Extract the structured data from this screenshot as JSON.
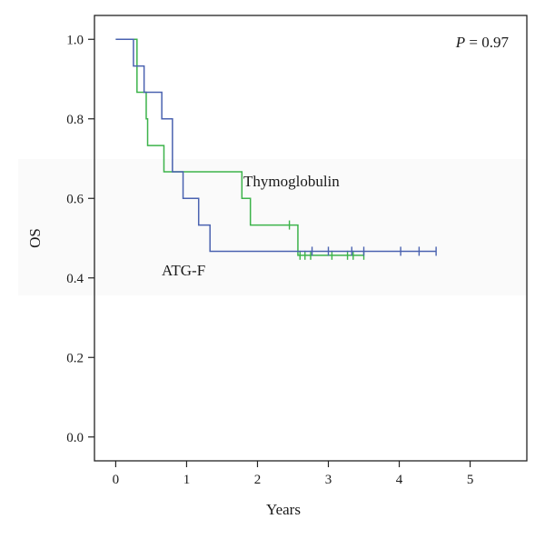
{
  "chart_data": {
    "type": "line",
    "xlabel": "Years",
    "ylabel": "OS",
    "xlim": [
      -0.3,
      5.8
    ],
    "ylim": [
      -0.06,
      1.06
    ],
    "x_ticks": [
      0,
      1,
      2,
      3,
      4,
      5
    ],
    "x_tick_labels": [
      "0",
      "1",
      "2",
      "3",
      "4",
      "5"
    ],
    "y_ticks": [
      0.0,
      0.2,
      0.4,
      0.6,
      0.8,
      1.0
    ],
    "y_tick_labels": [
      "0.0",
      "0.2",
      "0.4",
      "0.6",
      "0.8",
      "1.0"
    ],
    "grid": false,
    "p_value": {
      "label": "P",
      "text": " = 0.97"
    },
    "series": [
      {
        "name": "Thymoglobulin",
        "color": "#3cb34a",
        "steps": [
          [
            0,
            1.0
          ],
          [
            0.3,
            0.867
          ],
          [
            0.43,
            0.8
          ],
          [
            0.45,
            0.733
          ],
          [
            0.68,
            0.667
          ],
          [
            1.78,
            0.6
          ],
          [
            1.9,
            0.533
          ],
          [
            2.55,
            0.533
          ],
          [
            2.57,
            0.457
          ]
        ],
        "end_x": 3.5,
        "censored": [
          {
            "x": 2.45,
            "y": 0.533
          },
          {
            "x": 2.6,
            "y": 0.457
          },
          {
            "x": 2.67,
            "y": 0.457
          },
          {
            "x": 2.75,
            "y": 0.457
          },
          {
            "x": 3.05,
            "y": 0.457
          },
          {
            "x": 3.27,
            "y": 0.457
          },
          {
            "x": 3.35,
            "y": 0.457
          },
          {
            "x": 3.5,
            "y": 0.457
          }
        ]
      },
      {
        "name": "ATG-F",
        "color": "#4a62b0",
        "steps": [
          [
            0,
            1.0
          ],
          [
            0.25,
            0.933
          ],
          [
            0.4,
            0.867
          ],
          [
            0.65,
            0.8
          ],
          [
            0.8,
            0.667
          ],
          [
            0.95,
            0.6
          ],
          [
            1.17,
            0.533
          ],
          [
            1.33,
            0.467
          ]
        ],
        "end_x": 4.52,
        "censored": [
          {
            "x": 2.77,
            "y": 0.467
          },
          {
            "x": 3.0,
            "y": 0.467
          },
          {
            "x": 3.33,
            "y": 0.467
          },
          {
            "x": 3.5,
            "y": 0.467
          },
          {
            "x": 4.02,
            "y": 0.467
          },
          {
            "x": 4.28,
            "y": 0.467
          },
          {
            "x": 4.52,
            "y": 0.467
          }
        ]
      }
    ]
  }
}
